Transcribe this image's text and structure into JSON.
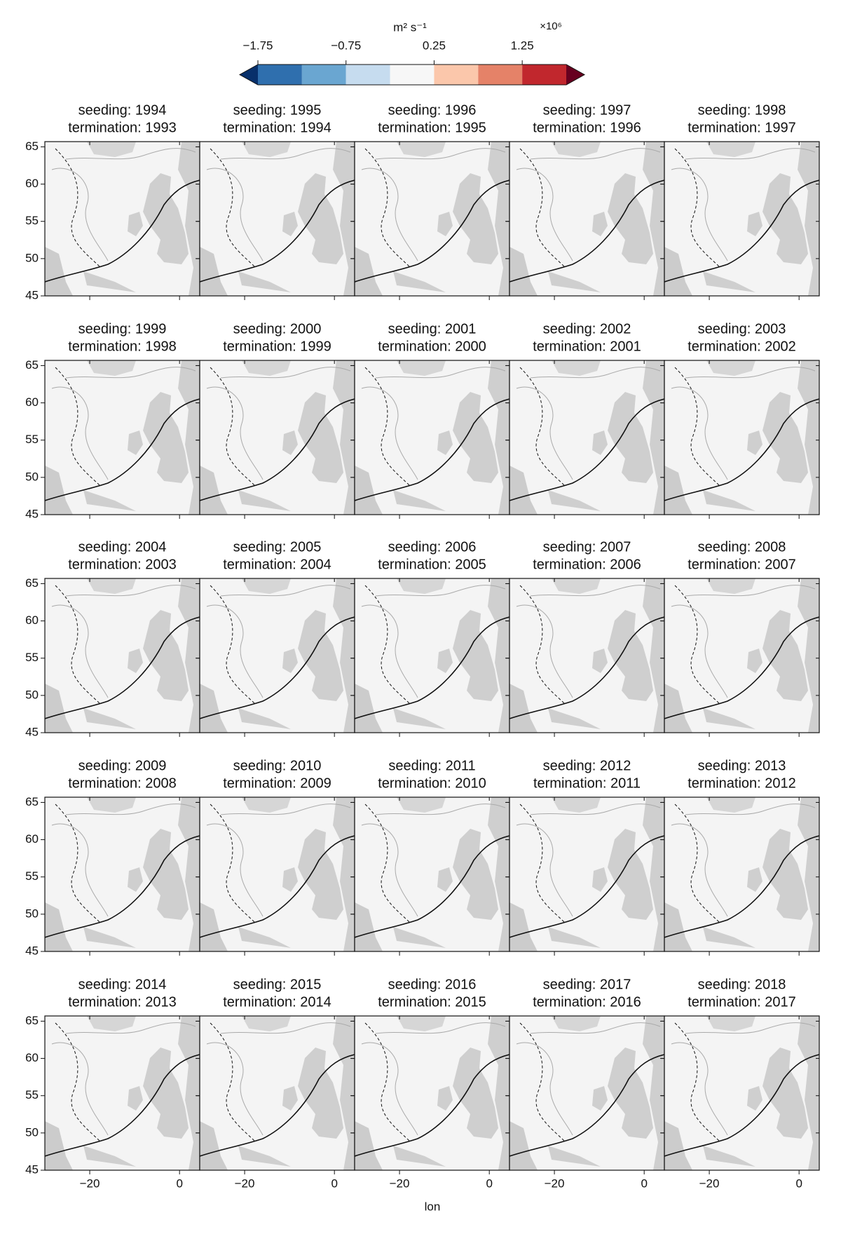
{
  "chart_data": {
    "type": "map-grid",
    "colorbar": {
      "label": "m² s⁻¹",
      "multiplier": "×10⁶",
      "lim": [
        -1.75,
        1.75
      ],
      "ticks": [
        {
          "value": -1.75,
          "label": "−1.75"
        },
        {
          "value": -0.75,
          "label": "−0.75"
        },
        0.25,
        1.25
      ],
      "under_color": "#08306b",
      "over_color": "#67001f",
      "colors": [
        "#2f6fae",
        "#6aa6d1",
        "#c6dcef",
        "#f7f7f7",
        "#fbc7ab",
        "#e58268",
        "#c1272d"
      ]
    },
    "xlabel": "lon",
    "xlim": [
      -30,
      4.5
    ],
    "ylim": [
      45,
      65.7
    ],
    "xticks": [
      {
        "value": -20,
        "label": "−20"
      },
      0
    ],
    "yticks": [
      45,
      50,
      55,
      60,
      65
    ],
    "panels": [
      {
        "seeding": "seeding: 1994",
        "termination": "termination: 1993"
      },
      {
        "seeding": "seeding: 1995",
        "termination": "termination: 1994"
      },
      {
        "seeding": "seeding: 1996",
        "termination": "termination: 1995"
      },
      {
        "seeding": "seeding: 1997",
        "termination": "termination: 1996"
      },
      {
        "seeding": "seeding: 1998",
        "termination": "termination: 1997"
      },
      {
        "seeding": "seeding: 1999",
        "termination": "termination: 1998"
      },
      {
        "seeding": "seeding: 2000",
        "termination": "termination: 1999"
      },
      {
        "seeding": "seeding: 2001",
        "termination": "termination: 2000"
      },
      {
        "seeding": "seeding: 2002",
        "termination": "termination: 2001"
      },
      {
        "seeding": "seeding: 2003",
        "termination": "termination: 2002"
      },
      {
        "seeding": "seeding: 2004",
        "termination": "termination: 2003"
      },
      {
        "seeding": "seeding: 2005",
        "termination": "termination: 2004"
      },
      {
        "seeding": "seeding: 2006",
        "termination": "termination: 2005"
      },
      {
        "seeding": "seeding: 2007",
        "termination": "termination: 2006"
      },
      {
        "seeding": "seeding: 2008",
        "termination": "termination: 2007"
      },
      {
        "seeding": "seeding: 2009",
        "termination": "termination: 2008"
      },
      {
        "seeding": "seeding: 2010",
        "termination": "termination: 2009"
      },
      {
        "seeding": "seeding: 2011",
        "termination": "termination: 2010"
      },
      {
        "seeding": "seeding: 2012",
        "termination": "termination: 2011"
      },
      {
        "seeding": "seeding: 2013",
        "termination": "termination: 2012"
      },
      {
        "seeding": "seeding: 2014",
        "termination": "termination: 2013"
      },
      {
        "seeding": "seeding: 2015",
        "termination": "termination: 2014"
      },
      {
        "seeding": "seeding: 2016",
        "termination": "termination: 2015"
      },
      {
        "seeding": "seeding: 2017",
        "termination": "termination: 2016"
      },
      {
        "seeding": "seeding: 2018",
        "termination": "termination: 2017"
      }
    ]
  }
}
